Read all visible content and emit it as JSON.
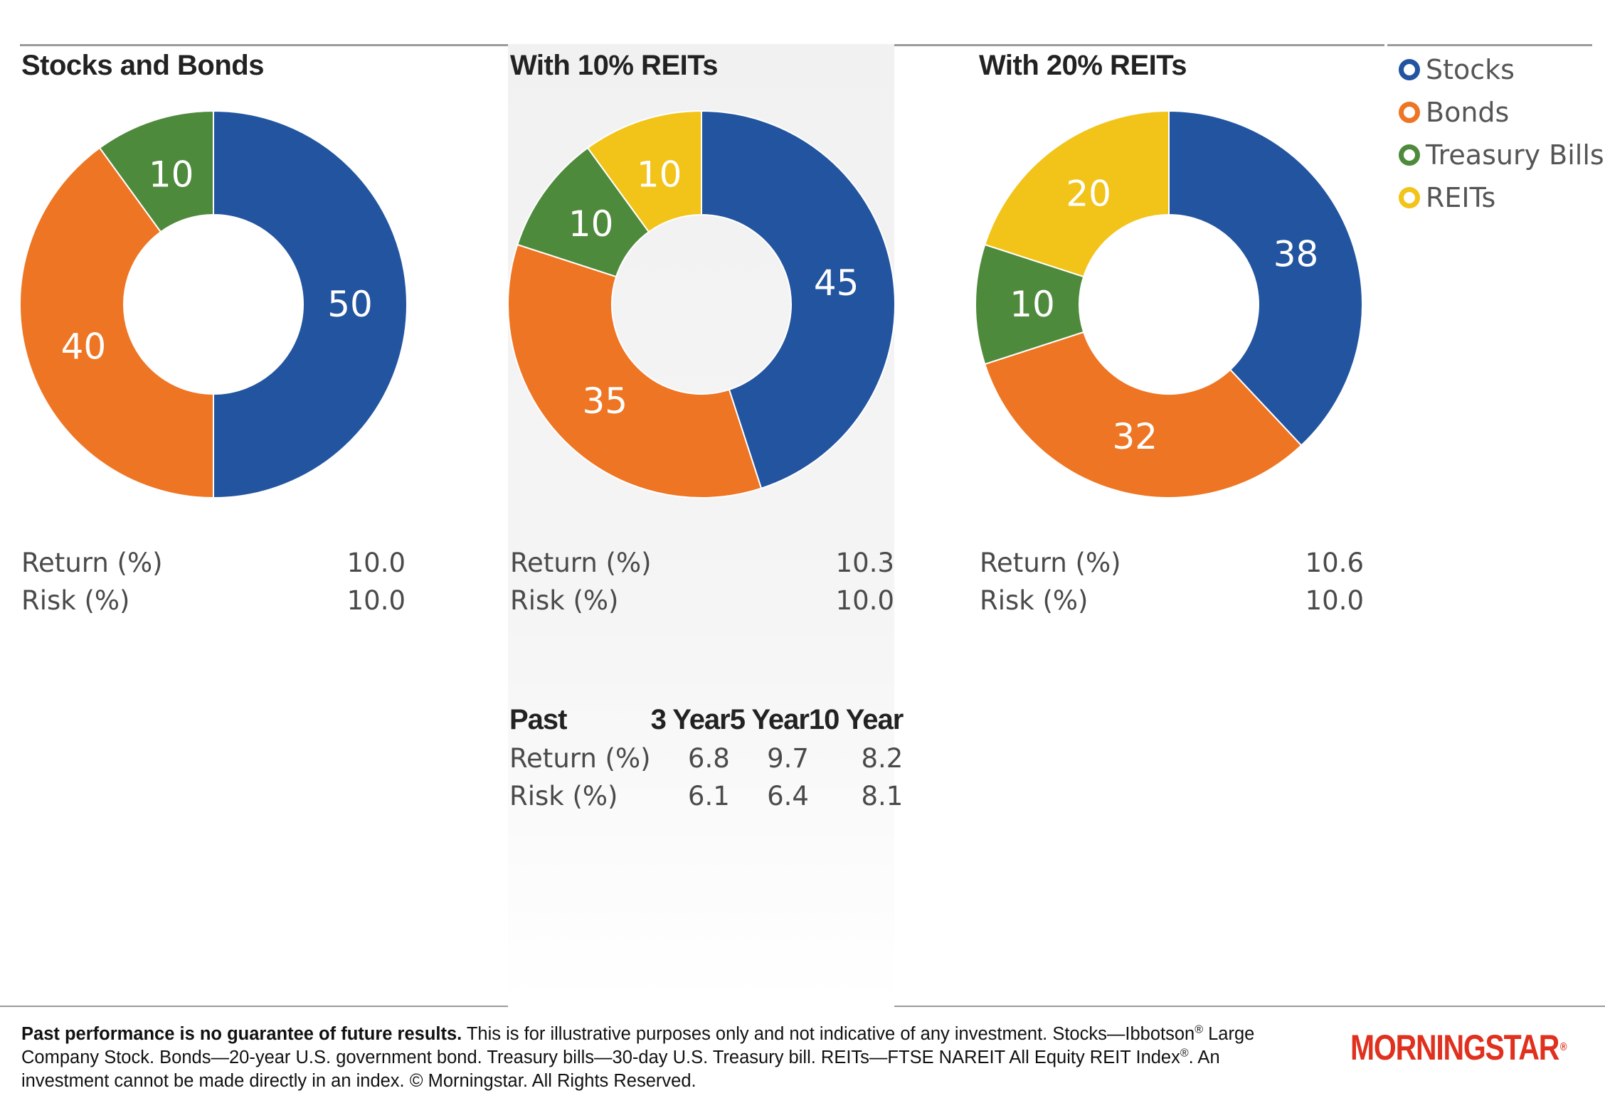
{
  "colors": {
    "stocks": "#2254a0",
    "bonds": "#ee7523",
    "treasury_bills": "#4e8a3c",
    "reits": "#f2c318"
  },
  "legend": [
    {
      "label": "Stocks",
      "color": "#2254a0"
    },
    {
      "label": "Bonds",
      "color": "#ee7523"
    },
    {
      "label": "Treasury Bills",
      "color": "#4e8a3c"
    },
    {
      "label": "REITs",
      "color": "#f2c318"
    }
  ],
  "chart_data": [
    {
      "type": "pie",
      "title": "Stocks and Bonds",
      "categories": [
        "Stocks",
        "Bonds",
        "Treasury Bills"
      ],
      "values": [
        50,
        40,
        10
      ],
      "colors": [
        "#2254a0",
        "#ee7523",
        "#4e8a3c"
      ],
      "stats": {
        "return_label": "Return (%)",
        "return_value": "10.0",
        "risk_label": "Risk (%)",
        "risk_value": "10.0"
      }
    },
    {
      "type": "pie",
      "title": "With 10% REITs",
      "categories": [
        "Stocks",
        "Bonds",
        "Treasury Bills",
        "REITs"
      ],
      "values": [
        45,
        35,
        10,
        10
      ],
      "colors": [
        "#2254a0",
        "#ee7523",
        "#4e8a3c",
        "#f2c318"
      ],
      "stats": {
        "return_label": "Return (%)",
        "return_value": "10.3",
        "risk_label": "Risk (%)",
        "risk_value": "10.0"
      }
    },
    {
      "type": "pie",
      "title": "With 20% REITs",
      "categories": [
        "Stocks",
        "Bonds",
        "Treasury Bills",
        "REITs"
      ],
      "values": [
        38,
        32,
        10,
        20
      ],
      "colors": [
        "#2254a0",
        "#ee7523",
        "#4e8a3c",
        "#f2c318"
      ],
      "stats": {
        "return_label": "Return (%)",
        "return_value": "10.6",
        "risk_label": "Risk (%)",
        "risk_value": "10.0"
      }
    },
    {
      "type": "table",
      "columns": [
        "Past",
        "3 Year",
        "5 Year",
        "10 Year"
      ],
      "rows": [
        [
          "Return (%)",
          "6.8",
          "9.7",
          "8.2"
        ],
        [
          "Risk (%)",
          "6.1",
          "6.4",
          "8.1"
        ]
      ]
    }
  ],
  "footnote": {
    "bold": "Past performance is no guarantee of future results.",
    "text1": " This is for illustrative purposes only and not indicative of any investment. Stocks—Ibbotson",
    "text2": " Large Company Stock. Bonds—20-year U.S. government bond. Treasury bills—30-day U.S. Treasury bill. REITs—FTSE NAREIT All Equity REIT Index",
    "text3": ". An investment cannot be made directly in an index. © Morningstar. All Rights Reserved.",
    "registered": "®"
  },
  "logo": {
    "text": "MORNINGSTAR",
    "registered": "®"
  }
}
